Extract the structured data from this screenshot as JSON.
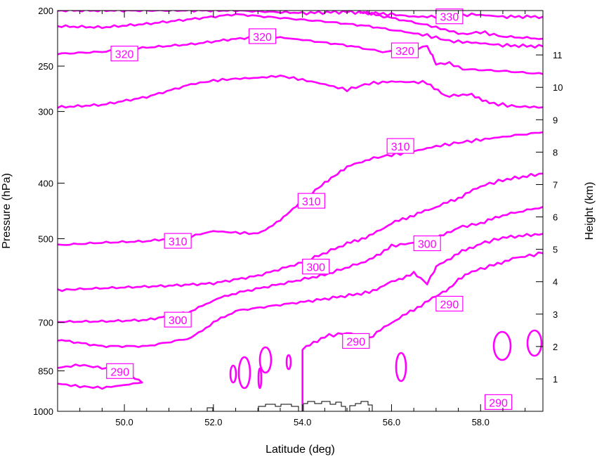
{
  "chart_data": {
    "type": "contour",
    "xlabel": "Latitude (deg)",
    "ylabel": "Pressure (hPa)",
    "ylabel_right": "Height (km)",
    "xlim": [
      48.5,
      59.4
    ],
    "ylim": [
      1000,
      200
    ],
    "y_scale": "log",
    "x_ticks": [
      50.0,
      52.0,
      54.0,
      56.0,
      58.0
    ],
    "x_tick_labels": [
      "50.0",
      "52.0",
      "54.0",
      "56.0",
      "58.0"
    ],
    "y_ticks": [
      1000,
      850,
      700,
      500,
      400,
      300,
      250,
      200
    ],
    "y_tick_labels": [
      "1000",
      "850",
      "700",
      "500",
      "400",
      "300",
      "250",
      "200"
    ],
    "right_ticks_km": [
      1,
      2,
      3,
      4,
      5,
      6,
      7,
      8,
      9,
      10,
      11
    ],
    "right_tick_labels": [
      "1",
      "2",
      "3",
      "4",
      "5",
      "6",
      "7",
      "8",
      "9",
      "10",
      "11"
    ],
    "series_color": "#ff00ff",
    "contours": [
      {
        "level": 330,
        "points": [
          [
            48.5,
            200
          ],
          [
            49.5,
            200
          ],
          [
            51.0,
            200
          ],
          [
            52.5,
            200
          ],
          [
            54.0,
            202
          ],
          [
            55.0,
            201
          ],
          [
            56.0,
            203
          ],
          [
            56.5,
            205
          ],
          [
            57.0,
            205
          ],
          [
            57.3,
            206
          ],
          [
            57.8,
            203
          ],
          [
            58.5,
            205
          ],
          [
            59.4,
            205
          ]
        ]
      },
      {
        "level": 330,
        "points": [
          [
            55.3,
            201
          ],
          [
            56.0,
            206
          ],
          [
            56.8,
            212
          ],
          [
            57.2,
            216
          ],
          [
            57.6,
            220
          ],
          [
            58.0,
            218
          ],
          [
            58.5,
            222
          ],
          [
            59.4,
            224
          ]
        ]
      },
      {
        "level": 320,
        "points": [
          [
            48.5,
            213
          ],
          [
            49.5,
            214
          ],
          [
            50.5,
            211
          ],
          [
            51.5,
            207
          ],
          [
            52.5,
            203
          ],
          [
            53.5,
            206
          ],
          [
            54.5,
            209
          ],
          [
            55.5,
            213
          ],
          [
            56.3,
            218
          ],
          [
            56.8,
            221
          ],
          [
            57.3,
            226
          ],
          [
            58.0,
            228
          ],
          [
            58.5,
            230
          ],
          [
            59.4,
            231
          ]
        ]
      },
      {
        "level": 320,
        "points": [
          [
            48.5,
            238
          ],
          [
            49.5,
            236
          ],
          [
            50.5,
            232
          ],
          [
            51.5,
            229
          ],
          [
            52.5,
            224
          ],
          [
            53.3,
            222
          ],
          [
            54.0,
            225
          ],
          [
            55.0,
            230
          ],
          [
            55.8,
            236
          ],
          [
            56.5,
            235
          ],
          [
            56.8,
            230
          ],
          [
            57.0,
            248
          ],
          [
            57.3,
            247
          ],
          [
            57.6,
            253
          ],
          [
            58.5,
            255
          ],
          [
            59.4,
            258
          ]
        ]
      },
      {
        "level": 310,
        "points": [
          [
            48.5,
            295
          ],
          [
            49.5,
            292
          ],
          [
            50.5,
            283
          ],
          [
            51.5,
            269
          ],
          [
            52.0,
            265
          ],
          [
            52.5,
            263
          ],
          [
            53.0,
            262
          ],
          [
            53.5,
            260
          ],
          [
            54.0,
            264
          ],
          [
            54.5,
            269
          ],
          [
            55.0,
            275
          ],
          [
            55.5,
            268
          ],
          [
            56.0,
            266
          ],
          [
            56.8,
            267
          ],
          [
            57.2,
            282
          ],
          [
            57.8,
            280
          ],
          [
            58.2,
            290
          ],
          [
            58.8,
            294
          ],
          [
            59.4,
            295
          ]
        ]
      },
      {
        "level": 310,
        "points": [
          [
            48.5,
            513
          ],
          [
            49.5,
            508
          ],
          [
            50.5,
            505
          ],
          [
            51.5,
            495
          ],
          [
            52.0,
            485
          ],
          [
            52.5,
            488
          ],
          [
            53.0,
            490
          ],
          [
            53.5,
            465
          ],
          [
            54.0,
            430
          ],
          [
            54.5,
            400
          ],
          [
            55.0,
            375
          ],
          [
            55.5,
            363
          ],
          [
            56.0,
            357
          ],
          [
            56.5,
            352
          ],
          [
            57.0,
            345
          ],
          [
            57.5,
            340
          ],
          [
            58.0,
            336
          ],
          [
            58.5,
            332
          ],
          [
            59.4,
            326
          ]
        ]
      },
      {
        "level": 300,
        "points": [
          [
            48.5,
            615
          ],
          [
            49.0,
            612
          ],
          [
            50.0,
            608
          ],
          [
            51.0,
            604
          ],
          [
            52.0,
            598
          ],
          [
            53.0,
            580
          ],
          [
            54.0,
            550
          ],
          [
            55.0,
            510
          ],
          [
            55.5,
            495
          ],
          [
            56.0,
            470
          ],
          [
            56.5,
            455
          ],
          [
            57.0,
            440
          ],
          [
            57.5,
            425
          ],
          [
            58.0,
            405
          ],
          [
            58.5,
            395
          ],
          [
            59.4,
            385
          ]
        ]
      },
      {
        "level": 300,
        "points": [
          [
            48.5,
            698
          ],
          [
            49.5,
            697
          ],
          [
            50.5,
            693
          ],
          [
            51.5,
            670
          ],
          [
            52.0,
            640
          ],
          [
            52.5,
            622
          ],
          [
            53.5,
            600
          ],
          [
            54.5,
            578
          ],
          [
            55.5,
            545
          ],
          [
            56.0,
            515
          ],
          [
            56.5,
            508
          ],
          [
            57.0,
            500
          ],
          [
            57.5,
            478
          ],
          [
            58.0,
            470
          ],
          [
            58.5,
            455
          ],
          [
            59.4,
            440
          ]
        ]
      },
      {
        "level": 290,
        "points": [
          [
            48.5,
            750
          ],
          [
            49.5,
            770
          ],
          [
            50.5,
            770
          ],
          [
            51.5,
            745
          ],
          [
            52.0,
            700
          ],
          [
            52.5,
            668
          ],
          [
            53.5,
            652
          ],
          [
            54.5,
            637
          ],
          [
            55.5,
            620
          ],
          [
            56.0,
            595
          ],
          [
            56.5,
            575
          ],
          [
            56.8,
            600
          ],
          [
            57.0,
            560
          ],
          [
            57.5,
            530
          ],
          [
            58.0,
            510
          ],
          [
            58.5,
            498
          ],
          [
            59.4,
            490
          ]
        ]
      },
      {
        "level": 290,
        "points": [
          [
            48.5,
            840
          ],
          [
            49.0,
            830
          ],
          [
            49.5,
            840
          ],
          [
            50.0,
            852
          ],
          [
            50.4,
            890
          ],
          [
            50.0,
            900
          ],
          [
            49.5,
            910
          ],
          [
            49.0,
            905
          ],
          [
            48.5,
            895
          ]
        ]
      },
      {
        "level": 290,
        "points": [
          [
            54.0,
            1000
          ],
          [
            54.0,
            880
          ],
          [
            54.0,
            780
          ],
          [
            54.5,
            740
          ],
          [
            55.0,
            730
          ],
          [
            55.5,
            745
          ],
          [
            56.0,
            700
          ],
          [
            56.5,
            665
          ],
          [
            57.0,
            630
          ],
          [
            57.3,
            610
          ],
          [
            57.5,
            590
          ],
          [
            57.8,
            570
          ],
          [
            58.0,
            565
          ],
          [
            58.3,
            555
          ],
          [
            58.8,
            540
          ],
          [
            59.4,
            530
          ]
        ]
      }
    ],
    "contour_labels": [
      {
        "text": "330",
        "x": 57.3,
        "p": 205
      },
      {
        "text": "320",
        "x": 50.0,
        "p": 238
      },
      {
        "text": "320",
        "x": 53.1,
        "p": 222
      },
      {
        "text": "320",
        "x": 56.3,
        "p": 235
      },
      {
        "text": "310",
        "x": 56.2,
        "p": 345
      },
      {
        "text": "310",
        "x": 54.2,
        "p": 430
      },
      {
        "text": "310",
        "x": 51.2,
        "p": 505
      },
      {
        "text": "300",
        "x": 56.8,
        "p": 510
      },
      {
        "text": "300",
        "x": 54.3,
        "p": 560
      },
      {
        "text": "300",
        "x": 51.2,
        "p": 693
      },
      {
        "text": "290",
        "x": 57.3,
        "p": 650
      },
      {
        "text": "290",
        "x": 55.2,
        "p": 755
      },
      {
        "text": "290",
        "x": 49.9,
        "p": 852
      },
      {
        "text": "290",
        "x": 58.4,
        "p": 965
      }
    ]
  }
}
